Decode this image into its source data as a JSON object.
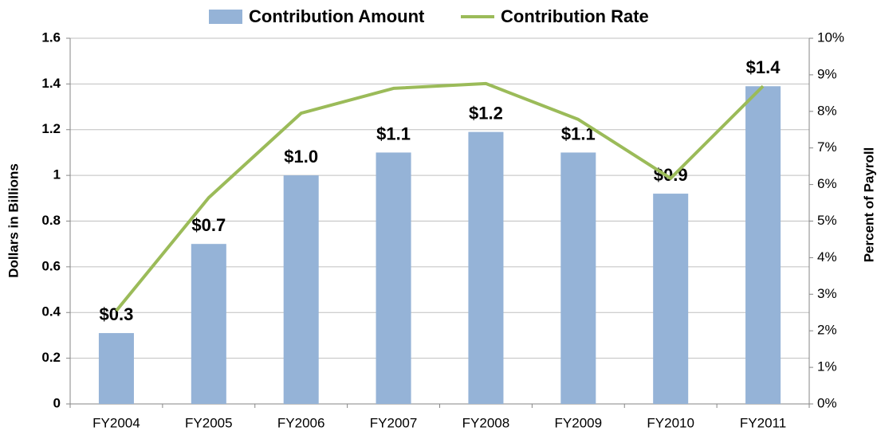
{
  "chart_data": {
    "type": "bar-line",
    "categories": [
      "FY2004",
      "FY2005",
      "FY2006",
      "FY2007",
      "FY2008",
      "FY2009",
      "FY2010",
      "FY2011"
    ],
    "series": [
      {
        "name": "Contribution Amount",
        "type": "bar",
        "color": "#95b3d7",
        "values": [
          0.31,
          0.7,
          1.0,
          1.1,
          1.19,
          1.1,
          0.92,
          1.39
        ],
        "value_labels": [
          "$0.3",
          "$0.7",
          "$1.0",
          "$1.1",
          "$1.2",
          "$1.1",
          "$0.9",
          "$1.4"
        ]
      },
      {
        "name": "Contribution Rate",
        "type": "line",
        "axis": "y2",
        "color": "#9bbb59",
        "values": [
          2.55,
          5.64,
          7.95,
          8.63,
          8.76,
          7.78,
          6.17,
          8.69
        ]
      }
    ],
    "ylabel": "Dollars in Billions",
    "y2label": "Percent of Payroll",
    "ylim": [
      0,
      1.6
    ],
    "yticks": [
      0,
      0.2,
      0.4,
      0.6,
      0.8,
      1,
      1.2,
      1.4,
      1.6
    ],
    "y2lim": [
      0,
      10
    ],
    "y2ticks": [
      {
        "value": 0,
        "label": "0%"
      },
      {
        "value": 1,
        "label": "1%"
      },
      {
        "value": 2,
        "label": "2%"
      },
      {
        "value": 3,
        "label": "3%"
      },
      {
        "value": 4,
        "label": "4%"
      },
      {
        "value": 5,
        "label": "5%"
      },
      {
        "value": 6,
        "label": "6%"
      },
      {
        "value": 7,
        "label": "7%"
      },
      {
        "value": 8,
        "label": "8%"
      },
      {
        "value": 9,
        "label": "9%"
      },
      {
        "value": 10,
        "label": "10%"
      }
    ],
    "grid": true,
    "legend": "top"
  }
}
